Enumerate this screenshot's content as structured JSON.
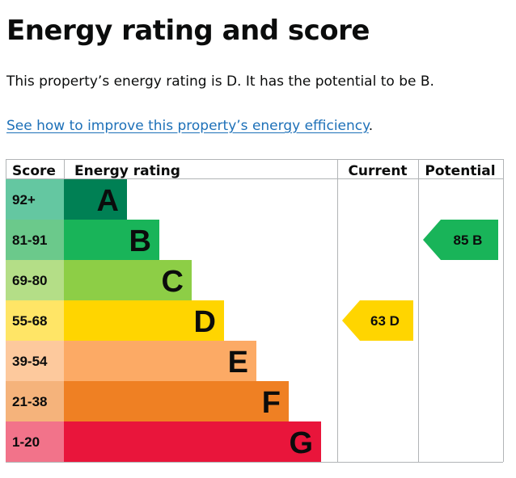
{
  "page": {
    "title": "Energy rating and score",
    "summary": "This property’s energy rating is D. It has the potential to be B.",
    "link_text": "See how to improve this property’s energy efficiency",
    "link_suffix": "."
  },
  "chart_data": {
    "type": "bar",
    "headers": {
      "score": "Score",
      "rating": "Energy rating",
      "current": "Current",
      "potential": "Potential"
    },
    "bands": [
      {
        "letter": "A",
        "score": "92+",
        "color": "#008054",
        "light": "#64c7a1"
      },
      {
        "letter": "B",
        "score": "81-91",
        "color": "#19b459",
        "light": "#6bc98b"
      },
      {
        "letter": "C",
        "score": "69-80",
        "color": "#8dce46",
        "light": "#b4de87"
      },
      {
        "letter": "D",
        "score": "55-68",
        "color": "#ffd500",
        "light": "#ffe566"
      },
      {
        "letter": "E",
        "score": "39-54",
        "color": "#fcaa65",
        "light": "#fdc99d"
      },
      {
        "letter": "F",
        "score": "21-38",
        "color": "#ef8023",
        "light": "#f5b37b"
      },
      {
        "letter": "G",
        "score": "1-20",
        "color": "#e9153b",
        "light": "#f2738a"
      }
    ],
    "current": {
      "score": 63,
      "letter": "D",
      "label": "63  D",
      "color": "#ffd500",
      "text_color": "#0b0c0c"
    },
    "potential": {
      "score": 85,
      "letter": "B",
      "label": "85  B",
      "color": "#19b459",
      "text_color": "#0b0c0c"
    }
  }
}
